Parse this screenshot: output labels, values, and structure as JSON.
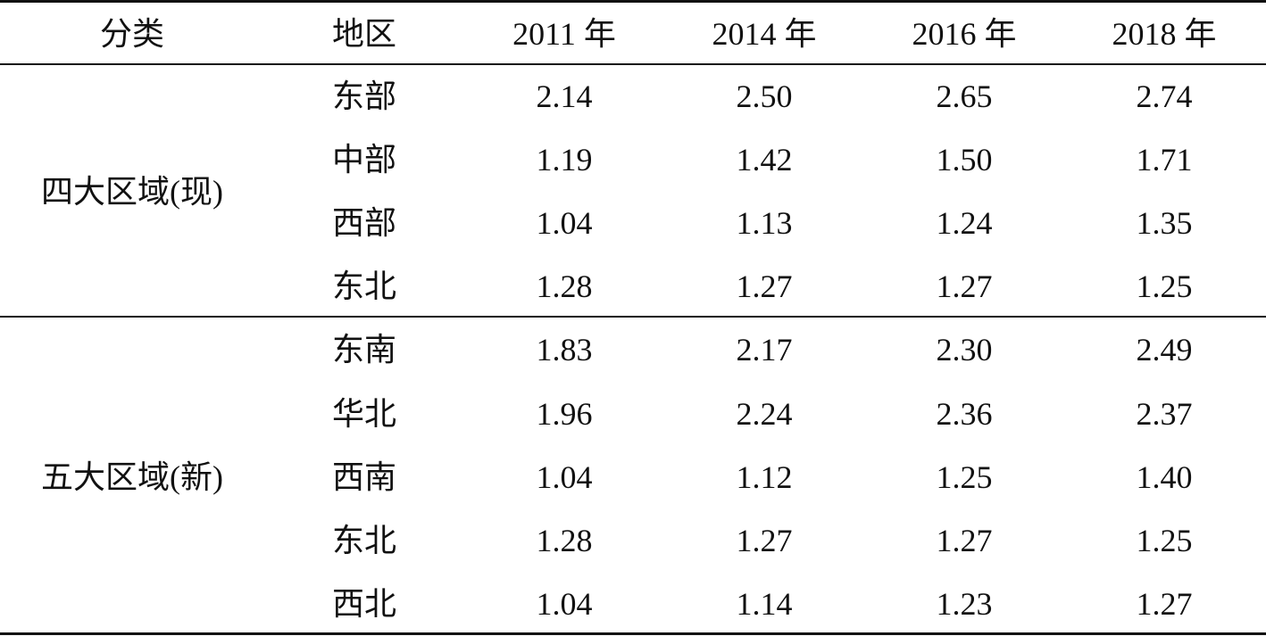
{
  "table": {
    "header": [
      "分类",
      "地区",
      "2011 年",
      "2014 年",
      "2016 年",
      "2018 年"
    ],
    "groups": [
      {
        "label": "四大区域(现)",
        "rows": [
          [
            "东部",
            "2.14",
            "2.50",
            "2.65",
            "2.74"
          ],
          [
            "中部",
            "1.19",
            "1.42",
            "1.50",
            "1.71"
          ],
          [
            "西部",
            "1.04",
            "1.13",
            "1.24",
            "1.35"
          ],
          [
            "东北",
            "1.28",
            "1.27",
            "1.27",
            "1.25"
          ]
        ]
      },
      {
        "label": "五大区域(新)",
        "rows": [
          [
            "东南",
            "1.83",
            "2.17",
            "2.30",
            "2.49"
          ],
          [
            "华北",
            "1.96",
            "2.24",
            "2.36",
            "2.37"
          ],
          [
            "西南",
            "1.04",
            "1.12",
            "1.25",
            "1.40"
          ],
          [
            "东北",
            "1.28",
            "1.27",
            "1.27",
            "1.25"
          ],
          [
            "西北",
            "1.04",
            "1.14",
            "1.23",
            "1.27"
          ]
        ]
      }
    ]
  }
}
